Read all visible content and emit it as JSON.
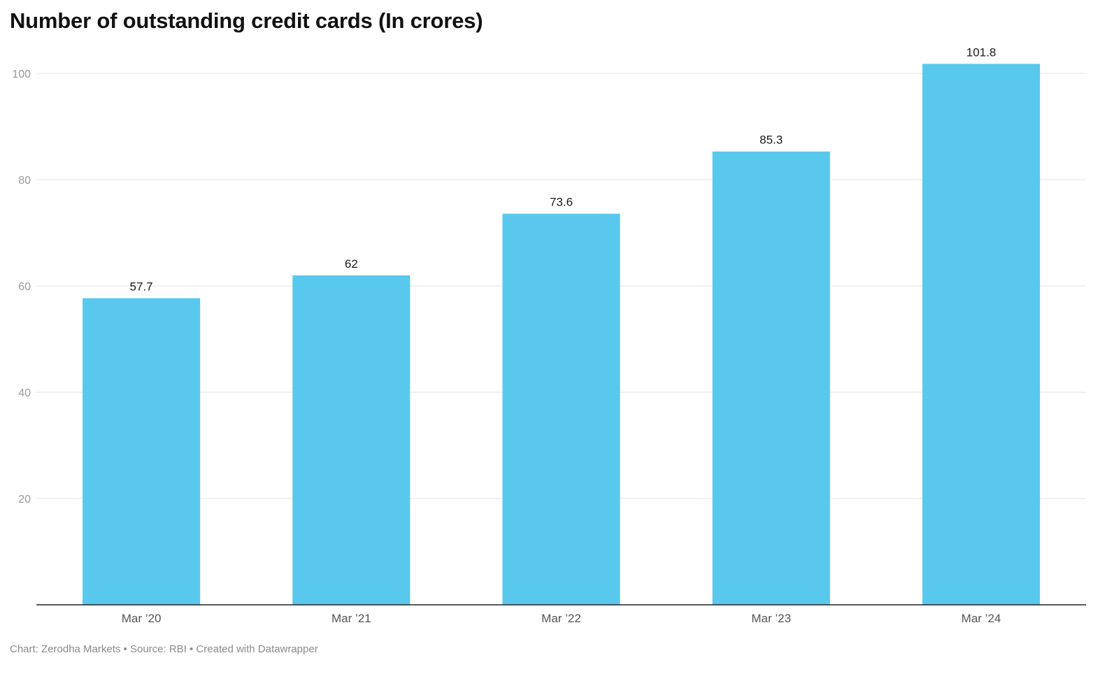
{
  "chart_data": {
    "type": "bar",
    "title": "Number of outstanding credit cards (In crores)",
    "categories": [
      "Mar ’20",
      "Mar ’21",
      "Mar ’22",
      "Mar ’23",
      "Mar ’24"
    ],
    "values": [
      57.7,
      62,
      73.6,
      85.3,
      101.8
    ],
    "value_labels": [
      "57.7",
      "62",
      "73.6",
      "85.3",
      "101.8"
    ],
    "yticks": [
      "20",
      "40",
      "60",
      "80",
      "100"
    ],
    "ylim": [
      0,
      100
    ],
    "grid": true,
    "bar_color": "#58c9ed",
    "xlabel": "",
    "ylabel": ""
  },
  "footer": "Chart: Zerodha Markets • Source: RBI • Created with Datawrapper"
}
